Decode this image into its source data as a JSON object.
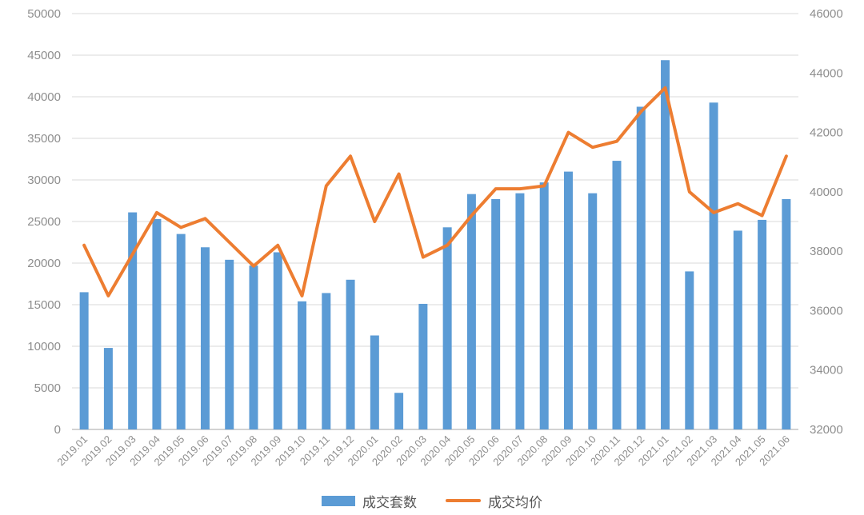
{
  "colors": {
    "bar": "#5B9BD5",
    "line": "#ED7D31",
    "grid": "#e1e1e1",
    "axis_line": "#d2d2d2",
    "axis_label": "#8e8e8e",
    "legend_text": "#555555",
    "background": "#ffffff"
  },
  "legend": {
    "bar_label": "成交套数",
    "line_label": "成交均价"
  },
  "chart_data": {
    "type": "bar",
    "title": "",
    "xlabel": "",
    "ylabel_left": "",
    "ylabel_right": "",
    "grid": true,
    "legend_position": "bottom",
    "categories": [
      "2019.01",
      "2019.02",
      "2019.03",
      "2019.04",
      "2019.05",
      "2019.06",
      "2019.07",
      "2019.08",
      "2019.09",
      "2019.10",
      "2019.11",
      "2019.12",
      "2020.01",
      "2020.02",
      "2020.03",
      "2020.04",
      "2020.05",
      "2020.06",
      "2020.07",
      "2020.08",
      "2020.09",
      "2020.10",
      "2020.11",
      "2020.12",
      "2021.01",
      "2021.02",
      "2021.03",
      "2021.04",
      "2021.05",
      "2021.06"
    ],
    "series": [
      {
        "name": "成交套数",
        "type": "bar",
        "axis": "left",
        "color": "#5B9BD5",
        "values": [
          16500,
          9800,
          26100,
          25300,
          23500,
          21900,
          20400,
          19700,
          21300,
          15400,
          16400,
          18000,
          11300,
          4400,
          15100,
          24300,
          28300,
          27700,
          28400,
          29700,
          31000,
          28400,
          32300,
          38800,
          44400,
          19000,
          39300,
          23900,
          25200,
          27700
        ]
      },
      {
        "name": "成交均价",
        "type": "line",
        "axis": "right",
        "color": "#ED7D31",
        "values": [
          38200,
          36500,
          37900,
          39300,
          38800,
          39100,
          38300,
          37500,
          38200,
          36500,
          40200,
          41200,
          39000,
          40600,
          37800,
          38200,
          39200,
          40100,
          40100,
          40200,
          42000,
          41500,
          41700,
          42700,
          43500,
          40000,
          39300,
          39600,
          39200,
          41200
        ]
      }
    ],
    "left_axis": {
      "min": 0,
      "max": 50000,
      "step": 5000,
      "labels": [
        "0",
        "5000",
        "10000",
        "15000",
        "20000",
        "25000",
        "30000",
        "35000",
        "40000",
        "45000",
        "50000"
      ]
    },
    "right_axis": {
      "min": 32000,
      "max": 46000,
      "step": 2000,
      "labels": [
        "32000",
        "34000",
        "36000",
        "38000",
        "40000",
        "42000",
        "44000",
        "46000"
      ]
    }
  }
}
